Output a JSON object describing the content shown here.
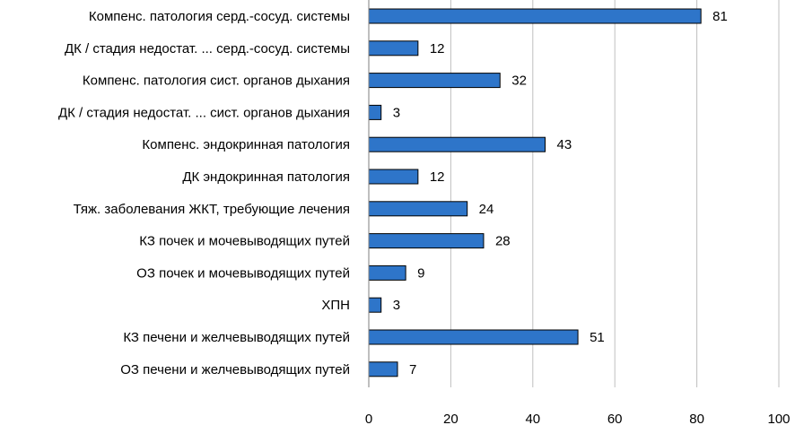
{
  "chart_data": {
    "type": "bar",
    "orientation": "horizontal",
    "title": "",
    "xlabel": "",
    "ylabel": "",
    "xlim": [
      0,
      100
    ],
    "xticks": [
      0,
      20,
      40,
      60,
      80,
      100
    ],
    "grid": true,
    "legend": "none",
    "bar_color": "#2e75c9",
    "bar_border_color": "#000000",
    "categories": [
      "Компенс. патология серд.-сосуд. системы",
      "ДК / стадия недостат. ... серд.-сосуд. системы",
      "Компенс. патология сист. органов дыхания",
      "ДК / стадия недостат. ... сист. органов дыхания",
      "Компенс. эндокринная патология",
      "ДК эндокринная патология",
      "Тяж. заболевания ЖКТ, требующие лечения",
      "КЗ почек и мочевыводящих путей",
      "ОЗ почек и мочевыводящих путей",
      "ХПН",
      "КЗ печени и желчевыводящих путей",
      "ОЗ печени и желчевыводящих путей"
    ],
    "values": [
      81,
      12,
      32,
      3,
      43,
      12,
      24,
      28,
      9,
      3,
      51,
      7
    ]
  }
}
